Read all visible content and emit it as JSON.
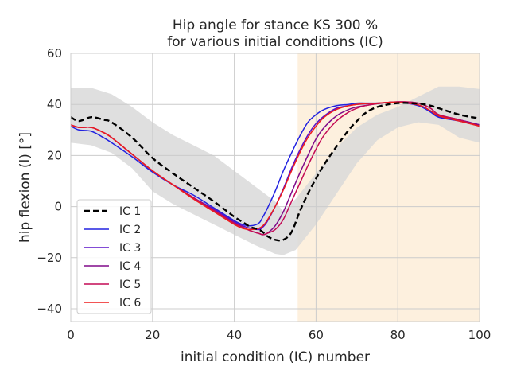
{
  "chart_data": {
    "type": "line",
    "title_line1": "Hip angle for stance KS 300 %",
    "title_line2": "for various initial conditions (IC)",
    "xlabel": "initial condition (IC) number",
    "ylabel": "hip flexion (l) [°]",
    "xlim": [
      0,
      100
    ],
    "ylim": [
      -45,
      60
    ],
    "xticks": [
      0,
      20,
      40,
      60,
      80,
      100
    ],
    "yticks": [
      -40,
      -20,
      0,
      20,
      40,
      60
    ],
    "grid": true,
    "legend_position": "lower-left",
    "shaded_region": {
      "x_start": 55.5,
      "x_end": 100,
      "color": "#fdf0de"
    },
    "band": {
      "color": "#d9d9d9",
      "x": [
        0,
        5,
        10,
        15,
        20,
        25,
        30,
        35,
        40,
        45,
        50,
        52,
        55,
        60,
        65,
        70,
        75,
        80,
        85,
        90,
        95,
        100
      ],
      "upper": [
        46.5,
        46.5,
        44,
        39,
        33,
        28,
        24,
        20,
        14,
        8,
        2,
        -2,
        3,
        13,
        23,
        31,
        36,
        39,
        43,
        47,
        47,
        46
      ],
      "lower": [
        25,
        24,
        21,
        15,
        6,
        1,
        -3,
        -7,
        -11,
        -15,
        -18.5,
        -19,
        -17,
        -7,
        5,
        17,
        26,
        31,
        33,
        32,
        27,
        25
      ]
    },
    "x": [
      0,
      2,
      5,
      8,
      10,
      15,
      20,
      25,
      30,
      35,
      40,
      42,
      44,
      46,
      47,
      48,
      50,
      52,
      54,
      56,
      58,
      60,
      62,
      65,
      68,
      70,
      72,
      75,
      80,
      85,
      88,
      90,
      95,
      100
    ],
    "series": [
      {
        "name": "IC 1",
        "color": "#000000",
        "dashed": true,
        "values": [
          35,
          33.5,
          35,
          34,
          33,
          27,
          19,
          13,
          7.5,
          2,
          -4,
          -6,
          -8,
          -9,
          -10,
          -11.5,
          -13,
          -13,
          -10,
          -2,
          5,
          11,
          16.5,
          23.5,
          30,
          33.5,
          36.5,
          39,
          40.5,
          40.3,
          39.5,
          38.5,
          36,
          34.5
        ]
      },
      {
        "name": "IC 2",
        "color": "#2222e0",
        "dashed": false,
        "values": [
          31.5,
          30,
          29.5,
          27,
          25,
          19.5,
          13.5,
          8.5,
          4.5,
          -0.5,
          -5.5,
          -7,
          -7.5,
          -6.5,
          -4,
          -1,
          6,
          14,
          21,
          27.5,
          33,
          36,
          38,
          39.5,
          40,
          40.5,
          40.5,
          40.5,
          40.8,
          39.5,
          37,
          35,
          33.5,
          31.5
        ]
      },
      {
        "name": "IC 3",
        "color": "#5a10c8",
        "dashed": false,
        "values": [
          32,
          31,
          31,
          29,
          27,
          20.5,
          14,
          8.5,
          3.5,
          -1,
          -6,
          -7.5,
          -8.5,
          -9,
          -8,
          -6,
          0,
          7,
          15,
          22,
          28,
          32.5,
          35.5,
          38.5,
          39.5,
          40,
          40.2,
          40.5,
          40.8,
          39.8,
          37.5,
          35.5,
          34,
          32
        ]
      },
      {
        "name": "IC 4",
        "color": "#800a8a",
        "dashed": false,
        "values": [
          32,
          31,
          31,
          29,
          27,
          20.5,
          14,
          8.5,
          3.5,
          -1.5,
          -6.5,
          -8,
          -9.5,
          -10.5,
          -11,
          -10.5,
          -7.5,
          -2,
          5.5,
          13,
          20,
          26.5,
          31,
          35.5,
          38,
          39,
          39.5,
          40.3,
          41,
          40.5,
          38.5,
          36,
          34,
          32
        ]
      },
      {
        "name": "IC 5",
        "color": "#c40a55",
        "dashed": false,
        "values": [
          32,
          31,
          31,
          29,
          27,
          20.5,
          14,
          8.5,
          3.5,
          -1.5,
          -6.5,
          -8,
          -9.5,
          -10.5,
          -11,
          -10.5,
          -9,
          -5,
          2,
          9,
          16,
          22.5,
          28,
          33.5,
          37,
          38.5,
          39.5,
          40.3,
          41,
          40.5,
          38.5,
          36,
          34,
          31.5
        ]
      },
      {
        "name": "IC 6",
        "color": "#ee1c1c",
        "dashed": false,
        "values": [
          32,
          31,
          31,
          29,
          27,
          20.5,
          14,
          8.5,
          3,
          -2,
          -7,
          -8.5,
          -9,
          -8.5,
          -7.5,
          -5.5,
          0,
          6.5,
          14,
          21,
          27,
          31.5,
          35,
          38,
          39.5,
          40,
          40.3,
          40.5,
          40.8,
          39.8,
          37.5,
          35.5,
          33.5,
          31.5
        ]
      }
    ]
  }
}
